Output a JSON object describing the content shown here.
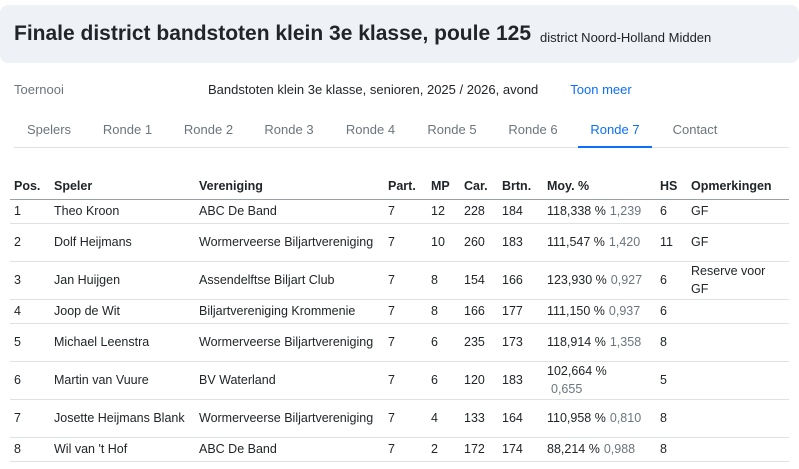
{
  "header": {
    "title": "Finale district bandstoten klein 3e klasse, poule 125",
    "district": "district Noord-Holland Midden"
  },
  "tournament": {
    "label": "Toernooi",
    "value": "Bandstoten klein 3e klasse, senioren, 2025 / 2026, avond",
    "more_link": "Toon meer"
  },
  "tabs": [
    "Spelers",
    "Ronde 1",
    "Ronde 2",
    "Ronde 3",
    "Ronde 4",
    "Ronde 5",
    "Ronde 6",
    "Ronde 7",
    "Contact"
  ],
  "active_tab": "Ronde 7",
  "colors": {
    "accent": "#0d6efd",
    "header_bg": "#eef2f7",
    "muted": "#6c757d"
  },
  "table": {
    "headers": {
      "pos": "Pos.",
      "speler": "Speler",
      "vereniging": "Vereniging",
      "part": "Part.",
      "mp": "MP",
      "car": "Car.",
      "brtn": "Brtn.",
      "moy": "Moy. %",
      "hs": "HS",
      "opm": "Opmerkingen"
    },
    "rows": [
      {
        "pos": "1",
        "speler": "Theo Kroon",
        "vereniging": "ABC De Band",
        "part": "7",
        "mp": "12",
        "car": "228",
        "brtn": "184",
        "pct": "118,338 %",
        "moy": "1,239",
        "hs": "6",
        "opm": "GF"
      },
      {
        "pos": "2",
        "speler": "Dolf Heijmans",
        "vereniging": "Wormerveerse Biljartvereniging",
        "part": "7",
        "mp": "10",
        "car": "260",
        "brtn": "183",
        "pct": "111,547 %",
        "moy": "1,420",
        "hs": "11",
        "opm": "GF"
      },
      {
        "pos": "3",
        "speler": "Jan Huijgen",
        "vereniging": "Assendelftse Biljart Club",
        "part": "7",
        "mp": "8",
        "car": "154",
        "brtn": "166",
        "pct": "123,930 %",
        "moy": "0,927",
        "hs": "6",
        "opm": "Reserve voor GF"
      },
      {
        "pos": "4",
        "speler": "Joop de Wit",
        "vereniging": "Biljartvereniging Krommenie",
        "part": "7",
        "mp": "8",
        "car": "166",
        "brtn": "177",
        "pct": "111,150 %",
        "moy": "0,937",
        "hs": "6",
        "opm": ""
      },
      {
        "pos": "5",
        "speler": "Michael Leenstra",
        "vereniging": "Wormerveerse Biljartvereniging",
        "part": "7",
        "mp": "6",
        "car": "235",
        "brtn": "173",
        "pct": "118,914 %",
        "moy": "1,358",
        "hs": "8",
        "opm": ""
      },
      {
        "pos": "6",
        "speler": "Martin van Vuure",
        "vereniging": "BV Waterland",
        "part": "7",
        "mp": "6",
        "car": "120",
        "brtn": "183",
        "pct": "102,664 %",
        "moy": "0,655",
        "hs": "5",
        "opm": ""
      },
      {
        "pos": "7",
        "speler": "Josette Heijmans Blank",
        "vereniging": "Wormerveerse Biljartvereniging",
        "part": "7",
        "mp": "4",
        "car": "133",
        "brtn": "164",
        "pct": "110,958 %",
        "moy": "0,810",
        "hs": "8",
        "opm": ""
      },
      {
        "pos": "8",
        "speler": "Wil van 't Hof",
        "vereniging": "ABC De Band",
        "part": "7",
        "mp": "2",
        "car": "172",
        "brtn": "174",
        "pct": "88,214 %",
        "moy": "0,988",
        "hs": "8",
        "opm": ""
      }
    ]
  }
}
